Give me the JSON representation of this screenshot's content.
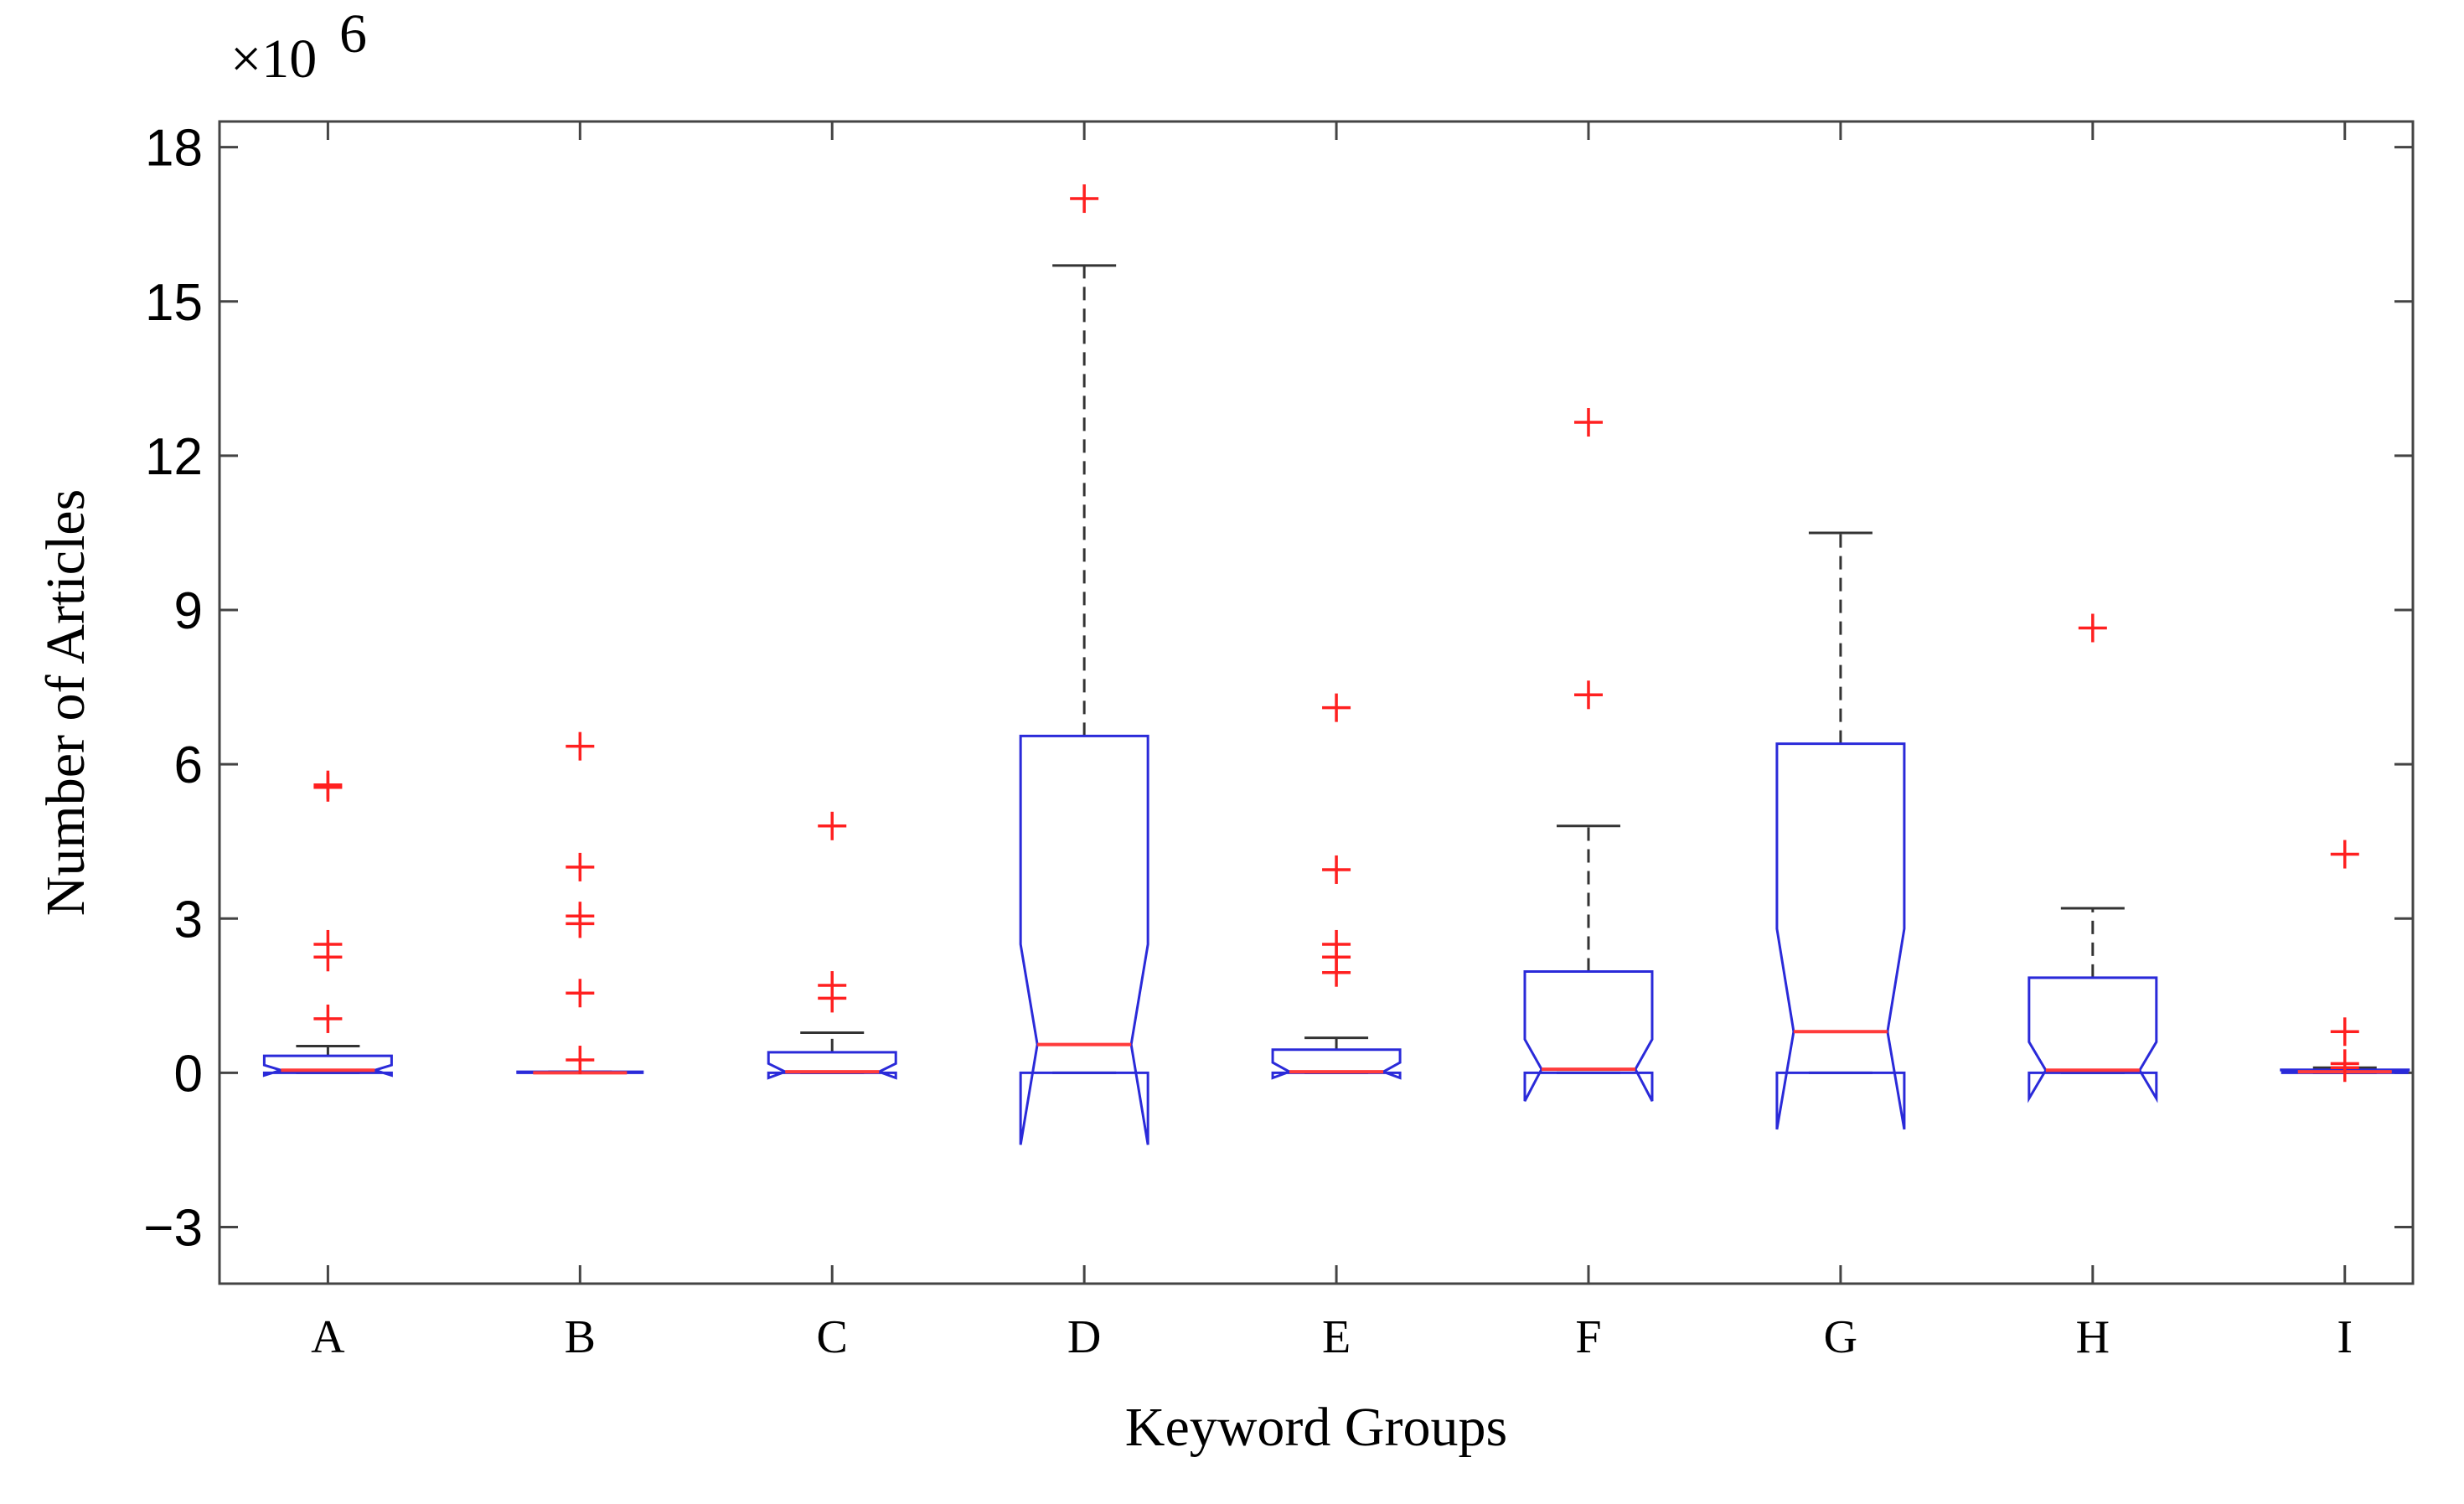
{
  "chart_data": {
    "type": "boxplot",
    "notched": true,
    "title": "",
    "xlabel": "Keyword Groups",
    "ylabel": "Number of Articles",
    "y_multiplier_label": "×10",
    "y_multiplier_exponent": "6",
    "ylim": [
      -4.1,
      18.5
    ],
    "yticks": [
      -3,
      0,
      3,
      6,
      9,
      12,
      15,
      18
    ],
    "ytick_labels": [
      "−3",
      "0",
      "3",
      "6",
      "9",
      "12",
      "15",
      "18"
    ],
    "categories": [
      "A",
      "B",
      "C",
      "D",
      "E",
      "F",
      "G",
      "H",
      "I"
    ],
    "colors": {
      "box": "#2a2ad9",
      "median": "#ff3b3b",
      "whisker": "#333333",
      "outlier": "#ff2020",
      "axis": "#444444"
    },
    "groups": [
      {
        "name": "A",
        "q1": 0.0,
        "median": 0.05,
        "q3": 0.33,
        "notch_low": -0.05,
        "notch_high": 0.15,
        "whisker_low": 0.0,
        "whisker_high": 0.52,
        "outliers": [
          5.6,
          5.55,
          2.5,
          2.25,
          1.05
        ]
      },
      {
        "name": "B",
        "q1": 0.0,
        "median": 0.0,
        "q3": 0.02,
        "notch_low": 0.0,
        "notch_high": 0.02,
        "whisker_low": 0.0,
        "whisker_high": 0.02,
        "outliers": [
          6.35,
          4.0,
          3.05,
          2.9,
          1.55,
          0.25
        ]
      },
      {
        "name": "C",
        "q1": 0.0,
        "median": 0.02,
        "q3": 0.4,
        "notch_low": -0.1,
        "notch_high": 0.18,
        "whisker_low": 0.0,
        "whisker_high": 0.78,
        "outliers": [
          4.8,
          1.7,
          1.45
        ]
      },
      {
        "name": "D",
        "q1": 0.0,
        "median": 0.55,
        "q3": 6.55,
        "notch_low": -1.4,
        "notch_high": 2.5,
        "whisker_low": 0.0,
        "whisker_high": 15.7,
        "outliers": [
          17.0
        ]
      },
      {
        "name": "E",
        "q1": 0.0,
        "median": 0.02,
        "q3": 0.45,
        "notch_low": -0.1,
        "notch_high": 0.2,
        "whisker_low": 0.0,
        "whisker_high": 0.68,
        "outliers": [
          7.1,
          3.95,
          2.5,
          2.25,
          1.95
        ]
      },
      {
        "name": "F",
        "q1": 0.0,
        "median": 0.07,
        "q3": 1.97,
        "notch_low": -0.55,
        "notch_high": 0.65,
        "whisker_low": 0.0,
        "whisker_high": 4.8,
        "outliers": [
          12.65,
          7.35
        ]
      },
      {
        "name": "G",
        "q1": 0.0,
        "median": 0.8,
        "q3": 6.4,
        "notch_low": -1.1,
        "notch_high": 2.8,
        "whisker_low": 0.0,
        "whisker_high": 10.5,
        "outliers": []
      },
      {
        "name": "H",
        "q1": 0.0,
        "median": 0.05,
        "q3": 1.85,
        "notch_low": -0.5,
        "notch_high": 0.6,
        "whisker_low": 0.0,
        "whisker_high": 3.2,
        "outliers": [
          8.65
        ]
      },
      {
        "name": "I",
        "q1": 0.0,
        "median": 0.02,
        "q3": 0.06,
        "notch_low": 0.0,
        "notch_high": 0.05,
        "whisker_low": 0.0,
        "whisker_high": 0.1,
        "outliers": [
          4.25,
          0.8,
          0.18,
          0.1
        ]
      }
    ]
  }
}
